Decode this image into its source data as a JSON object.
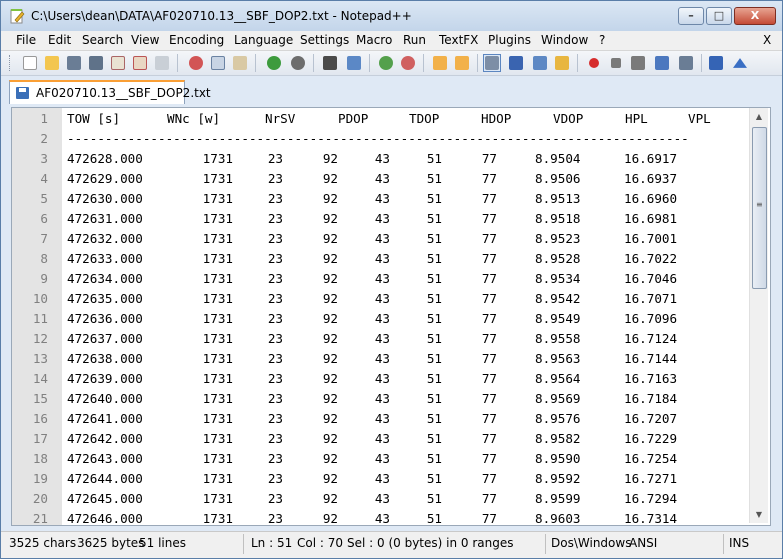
{
  "window": {
    "title": "C:\\Users\\dean\\DATA\\AF020710.13__SBF_DOP2.txt - Notepad++",
    "minimize_label": "–",
    "maximize_label": "□",
    "close_label": "X"
  },
  "menu": {
    "items": [
      "File",
      "Edit",
      "Search",
      "View",
      "Encoding",
      "Language",
      "Settings",
      "Macro",
      "Run",
      "TextFX",
      "Plugins",
      "Window",
      "?"
    ],
    "close_doc_label": "X"
  },
  "tab": {
    "label": "AF020710.13__SBF_DOP2.txt"
  },
  "editor": {
    "header": [
      "TOW [s]",
      "WNc [w]",
      "NrSV",
      "PDOP",
      "TDOP",
      "HDOP",
      "VDOP",
      "HPL",
      "VPL"
    ],
    "separator": "----------------------------------------------------------------------------------",
    "first_line_number": 1,
    "rows": [
      [
        "472628.000",
        "1731",
        "23",
        "92",
        "43",
        "51",
        "77",
        "8.9504",
        "16.6917"
      ],
      [
        "472629.000",
        "1731",
        "23",
        "92",
        "43",
        "51",
        "77",
        "8.9506",
        "16.6937"
      ],
      [
        "472630.000",
        "1731",
        "23",
        "92",
        "43",
        "51",
        "77",
        "8.9513",
        "16.6960"
      ],
      [
        "472631.000",
        "1731",
        "23",
        "92",
        "43",
        "51",
        "77",
        "8.9518",
        "16.6981"
      ],
      [
        "472632.000",
        "1731",
        "23",
        "92",
        "43",
        "51",
        "77",
        "8.9523",
        "16.7001"
      ],
      [
        "472633.000",
        "1731",
        "23",
        "92",
        "43",
        "51",
        "77",
        "8.9528",
        "16.7022"
      ],
      [
        "472634.000",
        "1731",
        "23",
        "92",
        "43",
        "51",
        "77",
        "8.9534",
        "16.7046"
      ],
      [
        "472635.000",
        "1731",
        "23",
        "92",
        "43",
        "51",
        "77",
        "8.9542",
        "16.7071"
      ],
      [
        "472636.000",
        "1731",
        "23",
        "92",
        "43",
        "51",
        "77",
        "8.9549",
        "16.7096"
      ],
      [
        "472637.000",
        "1731",
        "23",
        "92",
        "43",
        "51",
        "77",
        "8.9558",
        "16.7124"
      ],
      [
        "472638.000",
        "1731",
        "23",
        "92",
        "43",
        "51",
        "77",
        "8.9563",
        "16.7144"
      ],
      [
        "472639.000",
        "1731",
        "23",
        "92",
        "43",
        "51",
        "77",
        "8.9564",
        "16.7163"
      ],
      [
        "472640.000",
        "1731",
        "23",
        "92",
        "43",
        "51",
        "77",
        "8.9569",
        "16.7184"
      ],
      [
        "472641.000",
        "1731",
        "23",
        "92",
        "43",
        "51",
        "77",
        "8.9576",
        "16.7207"
      ],
      [
        "472642.000",
        "1731",
        "23",
        "92",
        "43",
        "51",
        "77",
        "8.9582",
        "16.7229"
      ],
      [
        "472643.000",
        "1731",
        "23",
        "92",
        "43",
        "51",
        "77",
        "8.9590",
        "16.7254"
      ],
      [
        "472644.000",
        "1731",
        "23",
        "92",
        "43",
        "51",
        "77",
        "8.9592",
        "16.7271"
      ],
      [
        "472645.000",
        "1731",
        "23",
        "92",
        "43",
        "51",
        "77",
        "8.9599",
        "16.7294"
      ],
      [
        "472646.000",
        "1731",
        "23",
        "92",
        "43",
        "51",
        "77",
        "8.9603",
        "16.7314"
      ]
    ]
  },
  "status": {
    "chars": "3525 chars",
    "bytes": "3625 bytes",
    "lines": "51 lines",
    "ln": "Ln : 51",
    "col": "Col : 70",
    "sel": "Sel : 0 (0 bytes) in 0 ranges",
    "eol": "Dos\\Windows",
    "encoding": "ANSI",
    "mode": "INS"
  },
  "colors": {
    "tab_accent": "#fa9f35",
    "gutter": "#e4e4e4",
    "line_number": "#808080"
  }
}
